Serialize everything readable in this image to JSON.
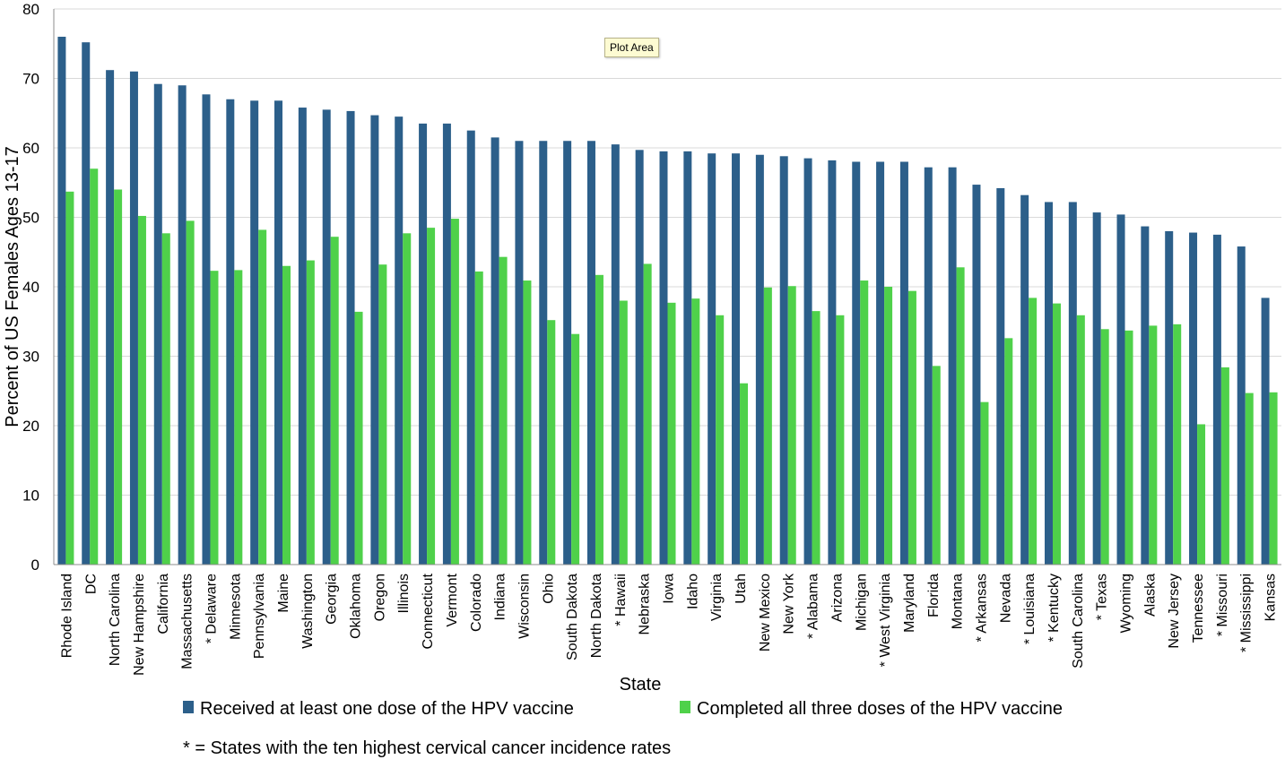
{
  "chart_data": {
    "type": "bar",
    "title": "",
    "xlabel": "State",
    "ylabel": "Percent of US Females Ages 13-17",
    "ylim": [
      0,
      80
    ],
    "yticks": [
      "0",
      "10",
      "20",
      "30",
      "40",
      "50",
      "60",
      "70",
      "80"
    ],
    "grid": true,
    "legend_placement": "bottom",
    "categories": [
      "Rhode Island",
      "DC",
      "North Carolina",
      "New Hampshire",
      "California",
      "Massachusetts",
      "* Delaware",
      "Minnesota",
      "Pennsylvania",
      "Maine",
      "Washington",
      "Georgia",
      "Oklahoma",
      "Oregon",
      "Illinois",
      "Connecticut",
      "Vermont",
      "Colorado",
      "Indiana",
      "Wisconsin",
      "Ohio",
      "South Dakota",
      "North Dakota",
      "* Hawaii",
      "Nebraska",
      "Iowa",
      "Idaho",
      "Virginia",
      "Utah",
      "New Mexico",
      "New York",
      "* Alabama",
      "Arizona",
      "Michigan",
      "* West Virginia",
      "Maryland",
      "Florida",
      "Montana",
      "* Arkansas",
      "Nevada",
      "* Louisiana",
      "* Kentucky",
      "South Carolina",
      "* Texas",
      "Wyoming",
      "Alaska",
      "New Jersey",
      "Tennessee",
      "* Missouri",
      "* Mississippi",
      "Kansas"
    ],
    "series": [
      {
        "name": "Received at least one dose of the HPV vaccine",
        "color": "#2c5f8a",
        "values": [
          76.0,
          75.2,
          71.2,
          71.0,
          69.2,
          69.0,
          67.7,
          67.0,
          66.8,
          66.8,
          65.8,
          65.5,
          65.3,
          64.7,
          64.5,
          63.5,
          63.5,
          62.5,
          61.5,
          61.0,
          61.0,
          61.0,
          61.0,
          60.5,
          59.7,
          59.5,
          59.5,
          59.2,
          59.2,
          59.0,
          58.8,
          58.5,
          58.2,
          58.0,
          58.0,
          58.0,
          57.2,
          57.2,
          54.7,
          54.2,
          53.2,
          52.2,
          52.2,
          50.7,
          50.4,
          48.7,
          48.0,
          47.8,
          47.5,
          45.8,
          38.4
        ]
      },
      {
        "name": "Completed all three doses of the HPV vaccine",
        "color": "#4fd14a",
        "values": [
          53.7,
          57.0,
          54.0,
          50.2,
          47.7,
          49.5,
          42.3,
          42.4,
          48.2,
          43.0,
          43.8,
          47.2,
          36.4,
          43.2,
          47.7,
          48.5,
          49.8,
          42.2,
          44.3,
          40.9,
          35.2,
          33.2,
          41.7,
          38.0,
          43.3,
          37.7,
          38.3,
          35.9,
          26.1,
          39.9,
          40.1,
          36.5,
          35.9,
          40.9,
          40.0,
          39.4,
          28.6,
          42.8,
          23.4,
          32.6,
          38.4,
          37.6,
          35.9,
          33.9,
          33.7,
          34.4,
          34.6,
          20.2,
          28.4,
          24.7,
          24.8
        ]
      }
    ],
    "footnote": "* = States with the ten highest cervical cancer incidence rates"
  },
  "tooltip": {
    "label": "Plot Area"
  }
}
